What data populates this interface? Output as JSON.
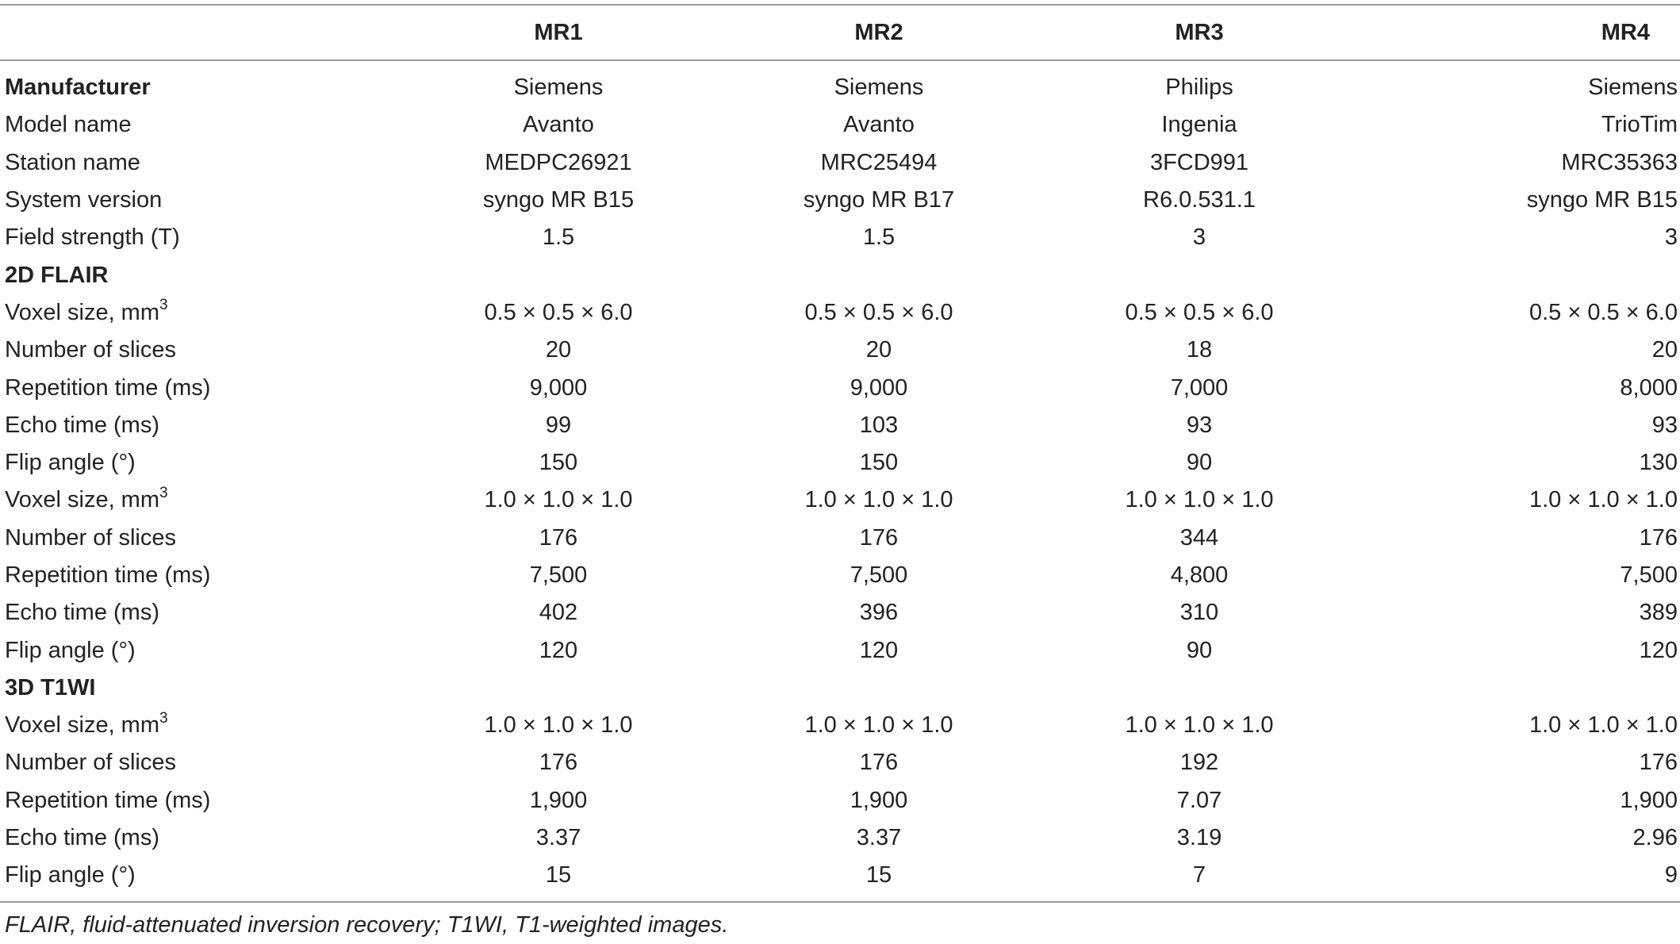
{
  "table": {
    "columns": [
      "",
      "MR1",
      "MR2",
      "MR3",
      "MR4"
    ],
    "rows": [
      {
        "type": "bold",
        "label": "Manufacturer",
        "values": [
          "Siemens",
          "Siemens",
          "Philips",
          "Siemens"
        ]
      },
      {
        "type": "data",
        "label": "Model name",
        "values": [
          "Avanto",
          "Avanto",
          "Ingenia",
          "TrioTim"
        ]
      },
      {
        "type": "data",
        "label": "Station name",
        "values": [
          "MEDPC26921",
          "MRC25494",
          "3FCD991",
          "MRC35363"
        ]
      },
      {
        "type": "data",
        "label": "System version",
        "values": [
          "syngo MR B15",
          "syngo MR B17",
          "R6.0.531.1",
          "syngo MR B15"
        ]
      },
      {
        "type": "data",
        "label": "Field strength (T)",
        "values": [
          "1.5",
          "1.5",
          "3",
          "3"
        ]
      },
      {
        "type": "section",
        "label": "2D FLAIR",
        "values": []
      },
      {
        "type": "data",
        "label": "Voxel size, mm",
        "sup": "3",
        "values": [
          "0.5 × 0.5 × 6.0",
          "0.5 × 0.5 × 6.0",
          "0.5 × 0.5 × 6.0",
          "0.5 × 0.5 × 6.0"
        ]
      },
      {
        "type": "data",
        "label": "Number of slices",
        "values": [
          "20",
          "20",
          "18",
          "20"
        ]
      },
      {
        "type": "data",
        "label": "Repetition time (ms)",
        "values": [
          "9,000",
          "9,000",
          "7,000",
          "8,000"
        ]
      },
      {
        "type": "data",
        "label": "Echo time (ms)",
        "values": [
          "99",
          "103",
          "93",
          "93"
        ]
      },
      {
        "type": "data",
        "label": "Flip angle (°)",
        "values": [
          "150",
          "150",
          "90",
          "130"
        ]
      },
      {
        "type": "data",
        "label": "Voxel size, mm",
        "sup": "3",
        "values": [
          "1.0 × 1.0 × 1.0",
          "1.0 × 1.0 × 1.0",
          "1.0 × 1.0 × 1.0",
          "1.0 × 1.0 × 1.0"
        ]
      },
      {
        "type": "data",
        "label": "Number of slices",
        "values": [
          "176",
          "176",
          "344",
          "176"
        ]
      },
      {
        "type": "data",
        "label": "Repetition time (ms)",
        "values": [
          "7,500",
          "7,500",
          "4,800",
          "7,500"
        ]
      },
      {
        "type": "data",
        "label": "Echo time (ms)",
        "values": [
          "402",
          "396",
          "310",
          "389"
        ]
      },
      {
        "type": "data",
        "label": "Flip angle (°)",
        "values": [
          "120",
          "120",
          "90",
          "120"
        ]
      },
      {
        "type": "section",
        "label": "3D T1WI",
        "values": []
      },
      {
        "type": "data",
        "label": "Voxel size, mm",
        "sup": "3",
        "values": [
          "1.0 × 1.0 × 1.0",
          "1.0 × 1.0 × 1.0",
          "1.0 × 1.0 × 1.0",
          "1.0 × 1.0 × 1.0"
        ]
      },
      {
        "type": "data",
        "label": "Number of slices",
        "values": [
          "176",
          "176",
          "192",
          "176"
        ]
      },
      {
        "type": "data",
        "label": "Repetition time (ms)",
        "values": [
          "1,900",
          "1,900",
          "7.07",
          "1,900"
        ]
      },
      {
        "type": "data",
        "label": "Echo time (ms)",
        "values": [
          "3.37",
          "3.37",
          "3.19",
          "2.96"
        ]
      },
      {
        "type": "data",
        "label": "Flip angle (°)",
        "values": [
          "15",
          "15",
          "7",
          "9"
        ]
      }
    ]
  },
  "footnote": "FLAIR, fluid-attenuated inversion recovery; T1WI, T1-weighted images."
}
